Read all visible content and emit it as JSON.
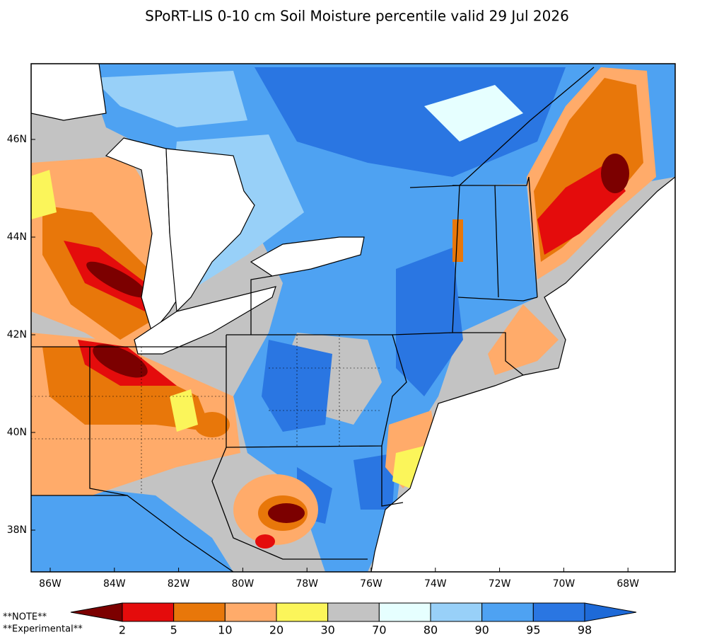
{
  "title": "SPoRT-LIS 0-10 cm Soil Moisture percentile valid 29 Jul 2026",
  "map": {
    "lon_labels": [
      "86W",
      "84W",
      "82W",
      "80W",
      "78W",
      "76W",
      "74W",
      "72W",
      "70W",
      "68W"
    ],
    "lat_labels": [
      "46N",
      "44N",
      "42N",
      "40N",
      "38N"
    ]
  },
  "colorbar": {
    "boundaries": [
      2,
      5,
      10,
      20,
      30,
      70,
      80,
      90,
      95,
      98
    ],
    "colors": [
      "#7c0000",
      "#e40c0c",
      "#e8770a",
      "#ffab6a",
      "#fbf55a",
      "#c3c3c3",
      "#e6ffff",
      "#98d0f8",
      "#4ea2f2",
      "#2a76e2",
      "#1e6ad8"
    ]
  },
  "notes": [
    "**NOTE**",
    "**Experimental**"
  ]
}
